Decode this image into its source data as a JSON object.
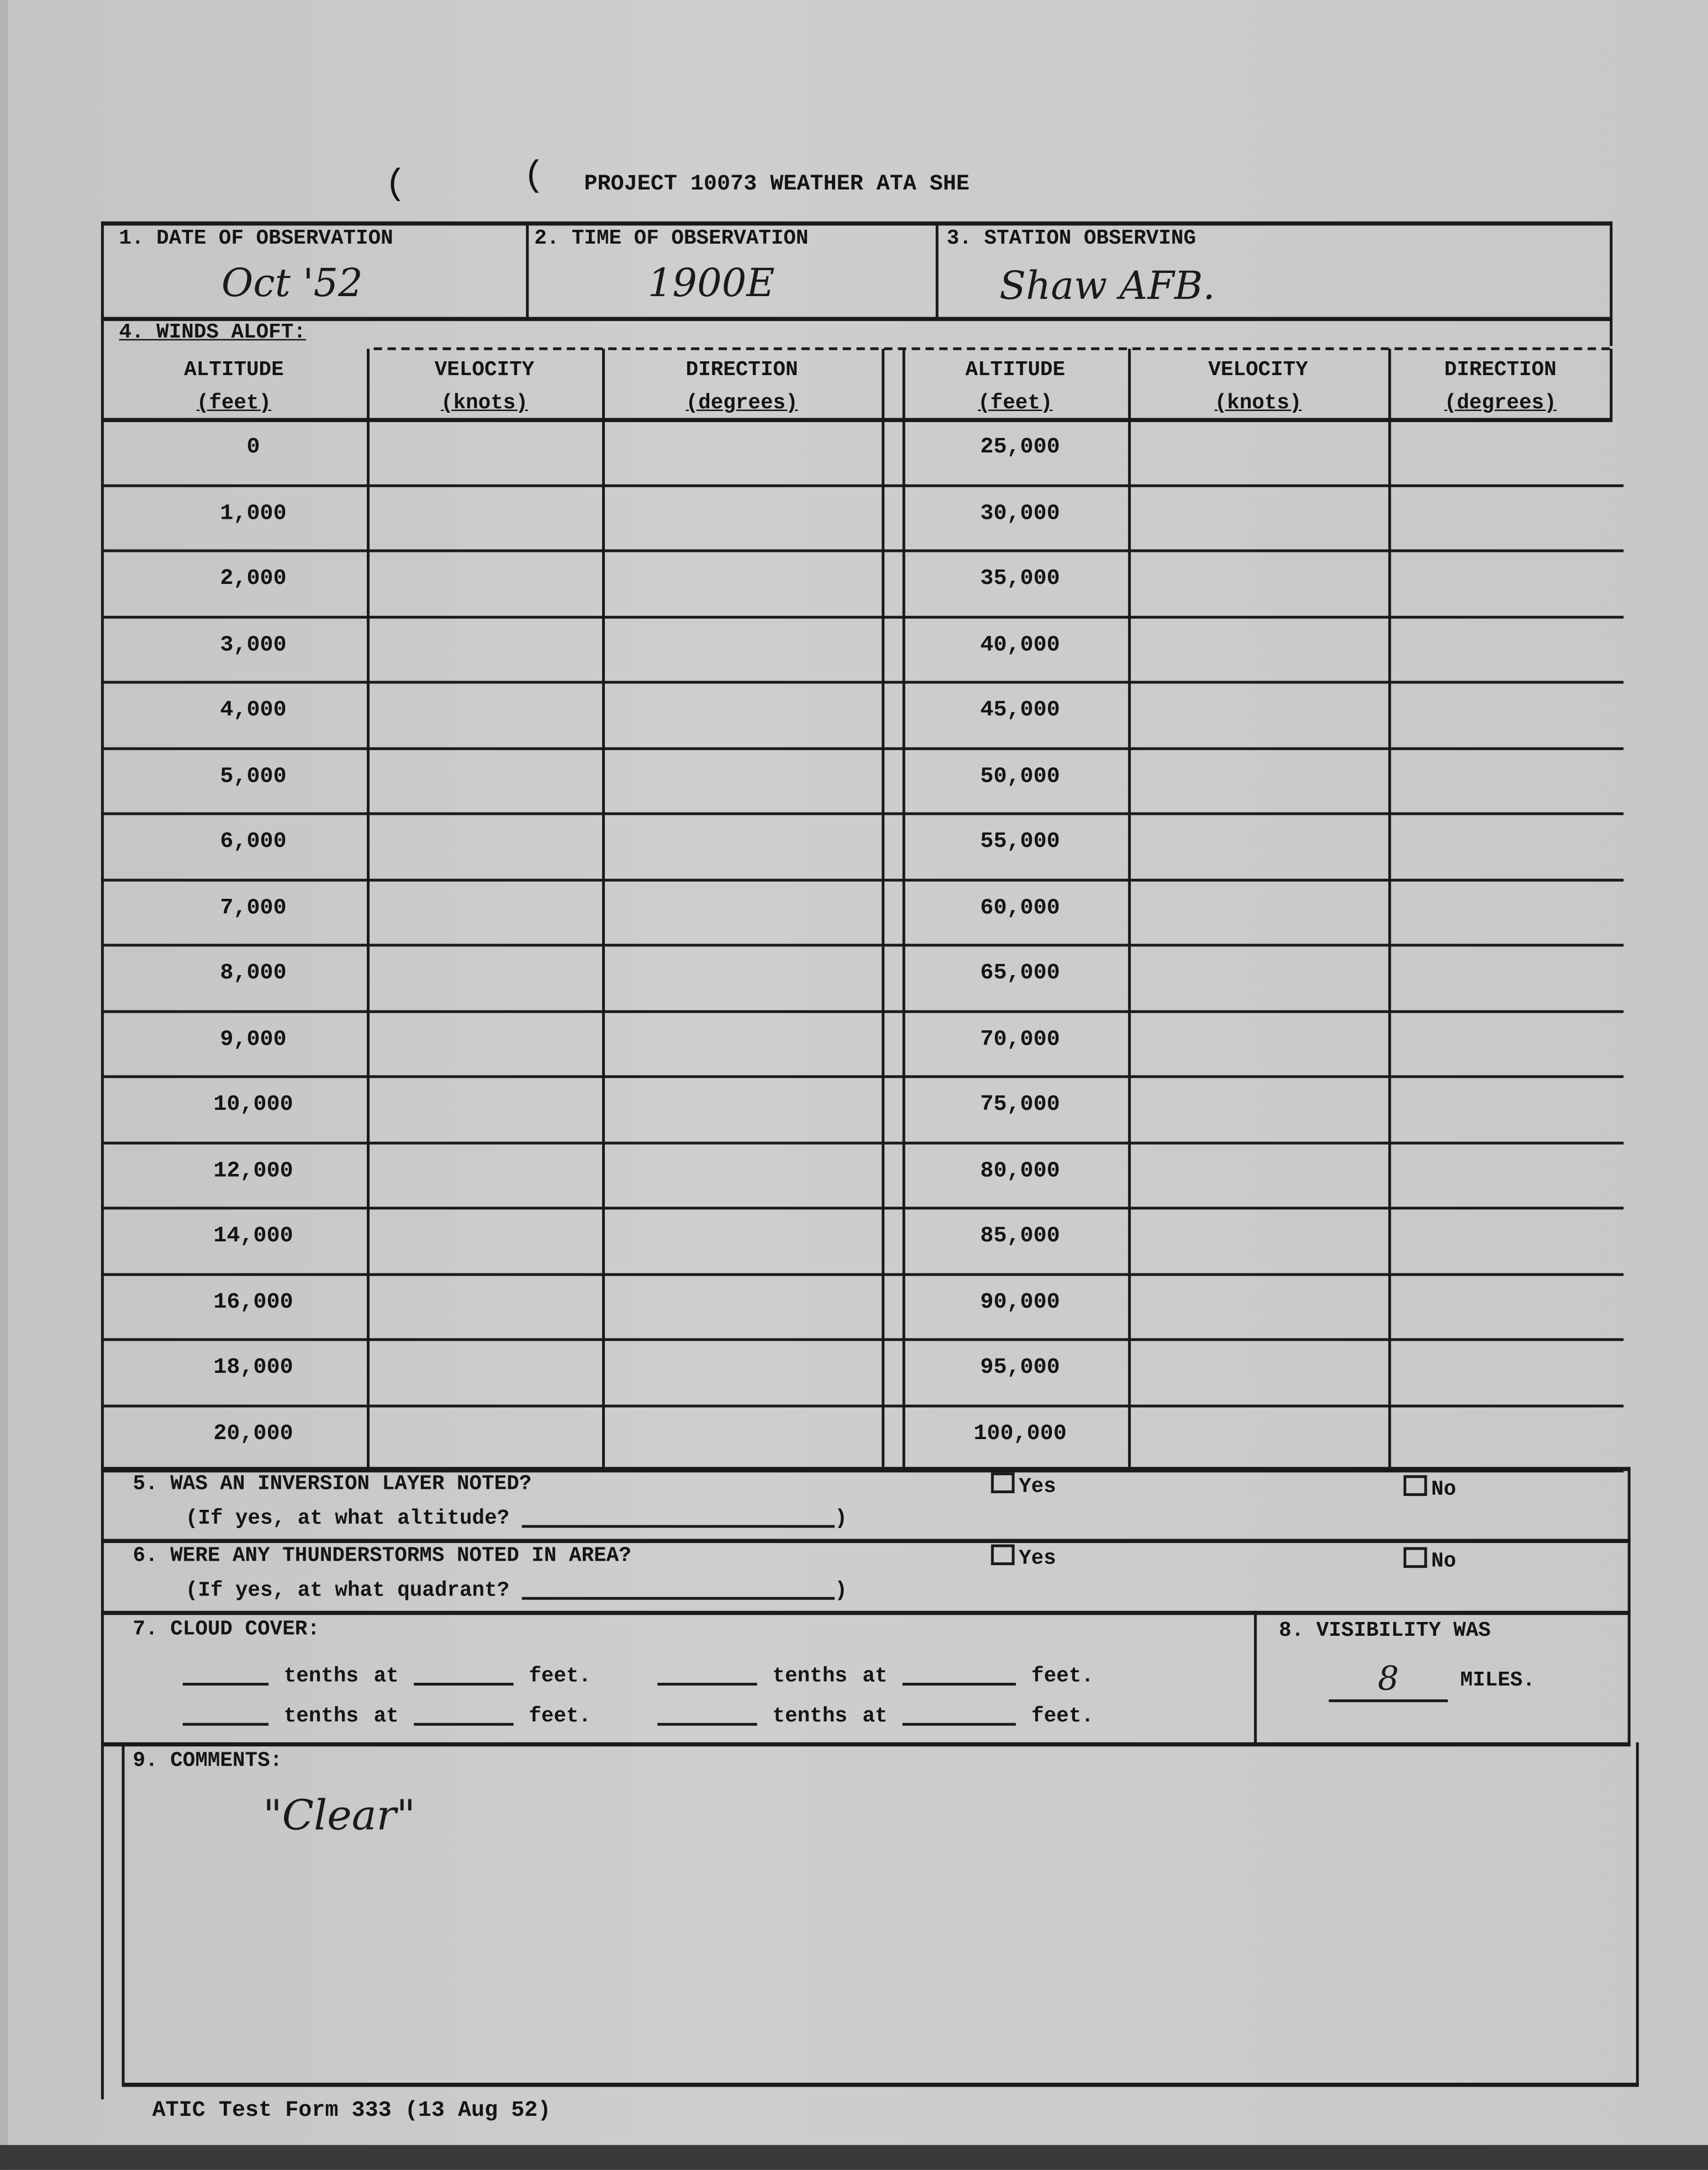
{
  "title": "PROJECT 10073 WEATHER  ATA SHE",
  "section1": {
    "label": "1. DATE OF OBSERVATION",
    "value": "Oct '52"
  },
  "section2": {
    "label": "2. TIME OF OBSERVATION",
    "value": "1900E"
  },
  "section3": {
    "label": "3. STATION OBSERVING",
    "value": "Shaw AFB."
  },
  "winds": {
    "label": "4. WINDS ALOFT:",
    "headers": [
      {
        "top": "ALTITUDE",
        "bottom": "(feet)"
      },
      {
        "top": "VELOCITY",
        "bottom": "(knots)"
      },
      {
        "top": "DIRECTION",
        "bottom": "(degrees)"
      },
      {
        "top": "ALTITUDE",
        "bottom": "(feet)"
      },
      {
        "top": "VELOCITY",
        "bottom": "(knots)"
      },
      {
        "top": "DIRECTION",
        "bottom": "(degrees)"
      }
    ],
    "left_altitudes": [
      "0",
      "1,000",
      "2,000",
      "3,000",
      "4,000",
      "5,000",
      "6,000",
      "7,000",
      "8,000",
      "9,000",
      "10,000",
      "12,000",
      "14,000",
      "16,000",
      "18,000",
      "20,000"
    ],
    "right_altitudes": [
      "25,000",
      "30,000",
      "35,000",
      "40,000",
      "45,000",
      "50,000",
      "55,000",
      "60,000",
      "65,000",
      "70,000",
      "75,000",
      "80,000",
      "85,000",
      "90,000",
      "95,000",
      "100,000"
    ]
  },
  "section5": {
    "label": "5. WAS AN INVERSION LAYER NOTED?",
    "sub": "(If yes, at what altitude?",
    "close": ")",
    "yes": "Yes",
    "no": "No"
  },
  "section6": {
    "label": "6. WERE ANY THUNDERSTORMS NOTED IN AREA?",
    "sub": "(If yes, at what quadrant?",
    "close": ")",
    "yes": "Yes",
    "no": "No"
  },
  "section7": {
    "label": "7. CLOUD COVER:",
    "tenths_at": "tenths at",
    "feet": "feet."
  },
  "section8": {
    "label": "8. VISIBILITY WAS",
    "value": "8",
    "unit": "MILES."
  },
  "section9": {
    "label": "9. COMMENTS:",
    "value": "\"Clear\""
  },
  "footer": "ATIC Test Form 333 (13 Aug 52)"
}
